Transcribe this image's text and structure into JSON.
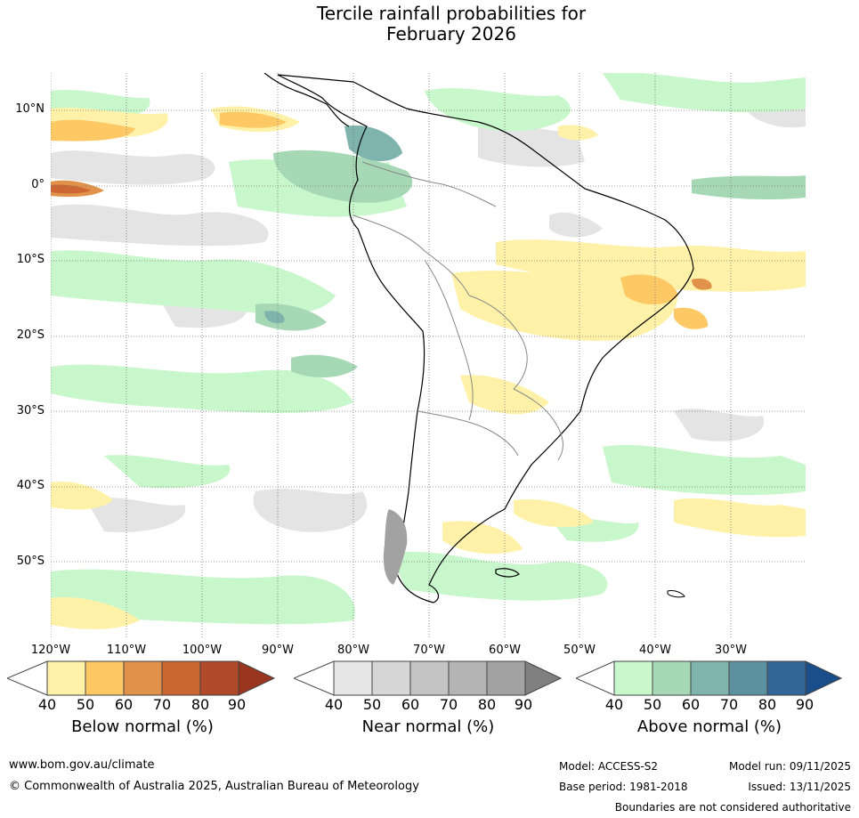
{
  "title_line1": "Tercile rainfall probabilities for",
  "title_line2": "February 2026",
  "map": {
    "lat_labels": [
      "10°N",
      "0°",
      "10°S",
      "20°S",
      "30°S",
      "40°S",
      "50°S"
    ],
    "lon_labels": [
      "120°W",
      "110°W",
      "100°W",
      "90°W",
      "80°W",
      "70°W",
      "60°W",
      "50°W",
      "40°W",
      "30°W"
    ]
  },
  "legends": [
    {
      "title": "Below normal (%)",
      "ticks": [
        "40",
        "50",
        "60",
        "70",
        "80",
        "90"
      ],
      "colors": [
        "#fff2a8",
        "#fec965",
        "#e0914a",
        "#cc6633",
        "#b04a2a",
        "#9a3520"
      ]
    },
    {
      "title": "Near normal (%)",
      "ticks": [
        "40",
        "50",
        "60",
        "70",
        "80",
        "90"
      ],
      "colors": [
        "#e6e6e6",
        "#d6d6d6",
        "#c4c4c4",
        "#b4b4b4",
        "#a2a2a2",
        "#808080"
      ]
    },
    {
      "title": "Above normal (%)",
      "ticks": [
        "40",
        "50",
        "60",
        "70",
        "80",
        "90"
      ],
      "colors": [
        "#c8f7cb",
        "#a6d8b6",
        "#7fb3ad",
        "#5c92a0",
        "#336699",
        "#1a4e8a"
      ]
    }
  ],
  "footer": {
    "website": "www.bom.gov.au/climate",
    "copyright": "© Commonwealth of Australia 2025, Australian Bureau of Meteorology",
    "model": "Model: ACCESS-S2",
    "base_period": "Base period: 1981-2018",
    "model_run": "Model run: 09/11/2025",
    "issued": "Issued: 13/11/2025",
    "disclaimer": "Boundaries are not considered authoritative"
  }
}
